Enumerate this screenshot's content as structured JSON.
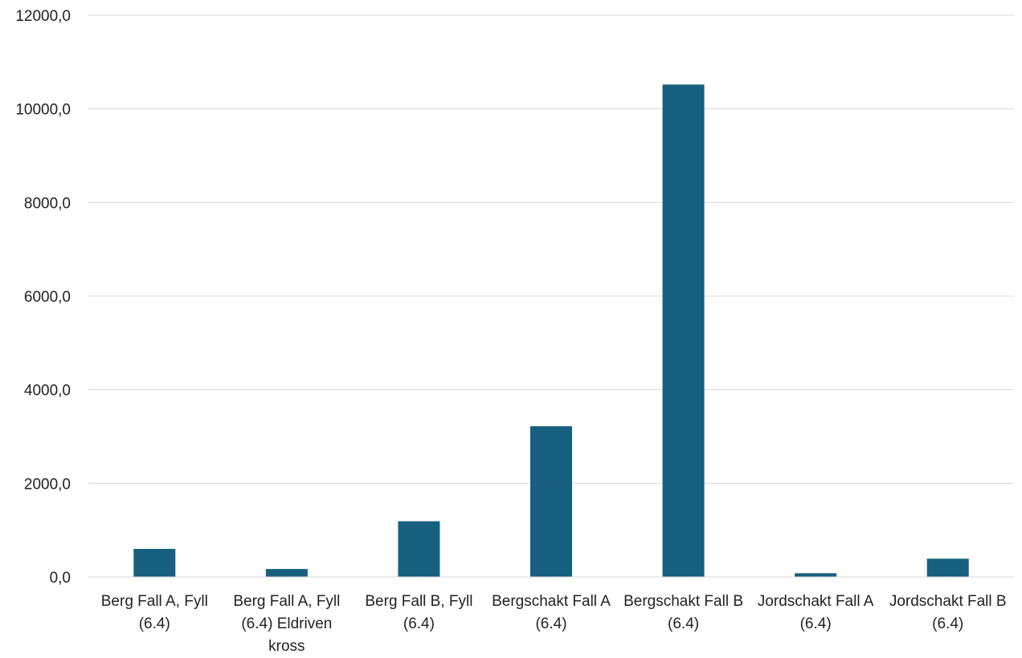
{
  "chart_data": {
    "type": "bar",
    "title": "",
    "xlabel": "",
    "ylabel": "",
    "categories": [
      [
        "Berg Fall A, Fyll",
        "(6.4)"
      ],
      [
        "Berg Fall A, Fyll",
        "(6.4) Eldriven",
        "kross"
      ],
      [
        "Berg Fall B, Fyll",
        "(6.4)"
      ],
      [
        "Bergschakt Fall A",
        "(6.4)"
      ],
      [
        "Bergschakt Fall B",
        "(6.4)"
      ],
      [
        "Jordschakt Fall A",
        "(6.4)"
      ],
      [
        "Jordschakt Fall B",
        "(6.4)"
      ]
    ],
    "values": [
      600,
      170,
      1190,
      3220,
      10520,
      80,
      390
    ],
    "ylim": [
      0,
      12000
    ],
    "yticks": [
      0,
      2000,
      4000,
      6000,
      8000,
      10000,
      12000
    ],
    "ytick_labels": [
      "0,0",
      "2000,0",
      "4000,0",
      "6000,0",
      "8000,0",
      "10000,0",
      "12000,0"
    ],
    "grid": true,
    "legend": "none",
    "bar_color": "#17607f"
  }
}
